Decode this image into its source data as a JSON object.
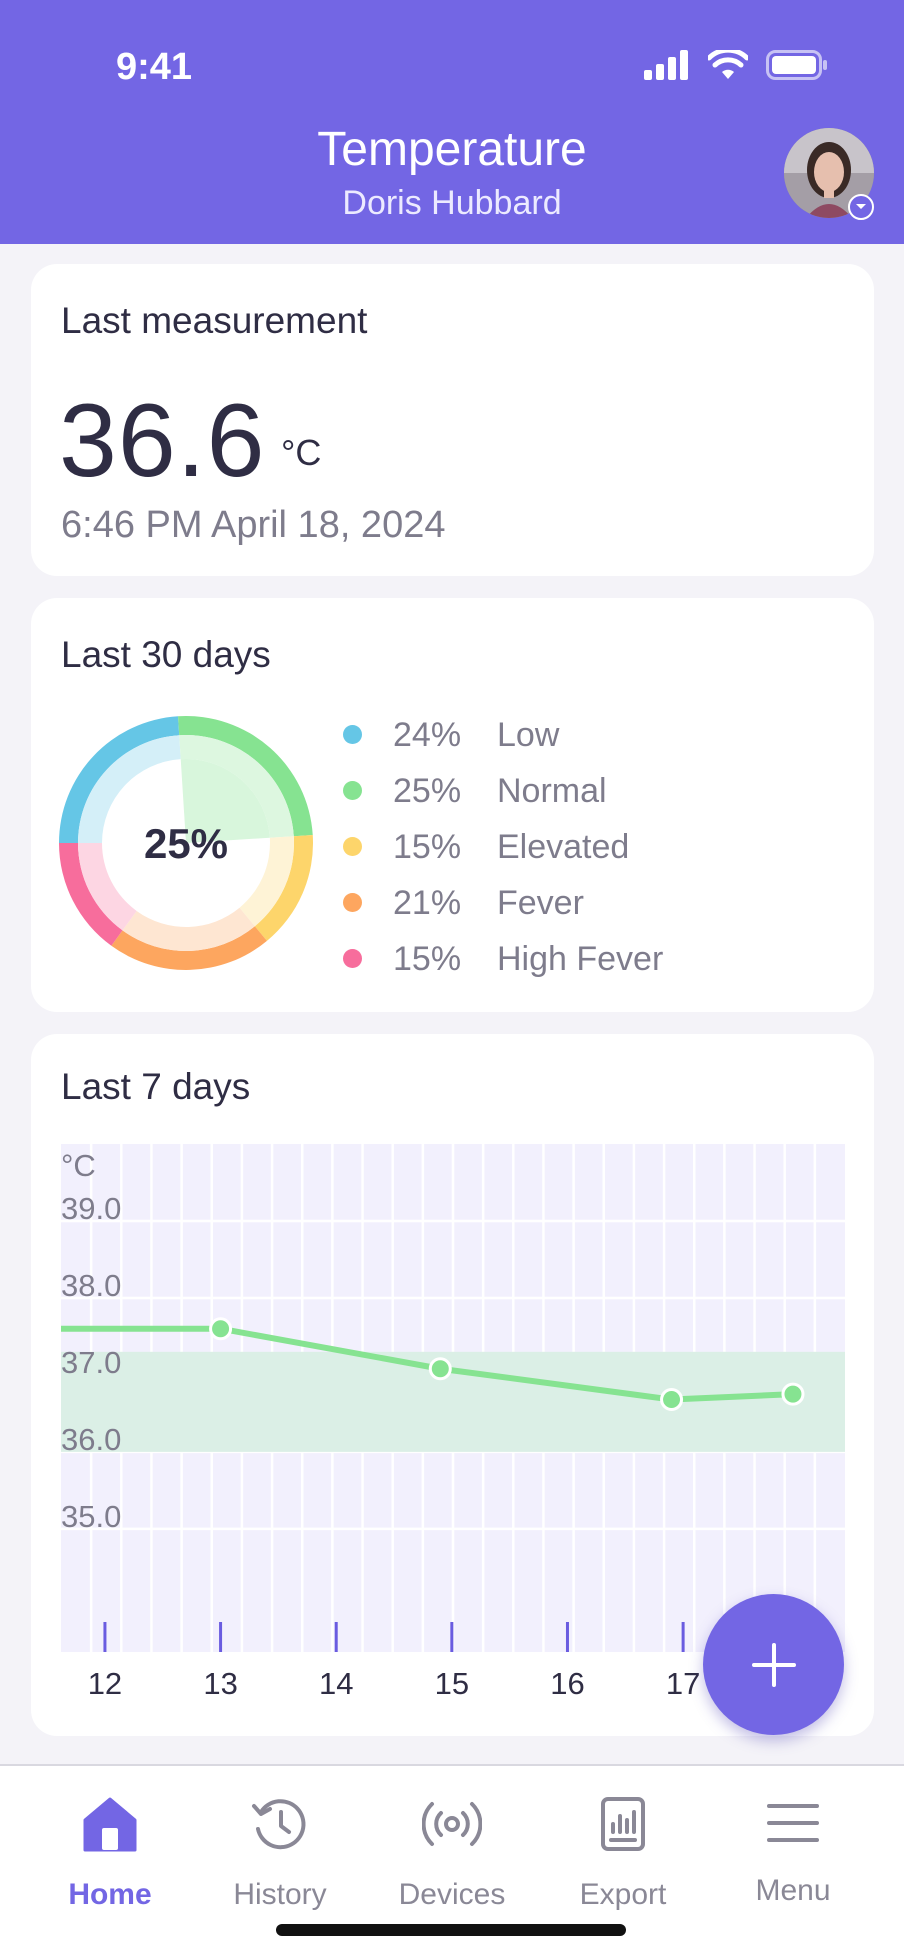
{
  "status_bar": {
    "time": "9:41"
  },
  "header": {
    "title": "Temperature",
    "subtitle": "Doris Hubbard"
  },
  "last_measurement": {
    "title": "Last measurement",
    "value": "36.6",
    "unit": "°C",
    "timestamp": "6:46 PM April 18, 2024"
  },
  "last_30_days": {
    "title": "Last 30 days",
    "center_label": "25%",
    "highlighted": "Normal",
    "segments": [
      {
        "percent": "24%",
        "label": "Low",
        "value": 24,
        "color": "#65c6e6"
      },
      {
        "percent": "25%",
        "label": "Normal",
        "value": 25,
        "color": "#86e391"
      },
      {
        "percent": "15%",
        "label": "Elevated",
        "value": 15,
        "color": "#fdd56b"
      },
      {
        "percent": "21%",
        "label": "Fever",
        "value": 21,
        "color": "#fda65f"
      },
      {
        "percent": "15%",
        "label": "High Fever",
        "value": 15,
        "color": "#f76d9c"
      }
    ]
  },
  "last_7_days": {
    "title": "Last 7 days",
    "unit_label": "°C",
    "chart_data": {
      "type": "line",
      "x_ticks": [
        "12",
        "13",
        "14",
        "15",
        "16",
        "17"
      ],
      "y_ticks": [
        "39.0",
        "38.0",
        "37.0",
        "36.0",
        "35.0"
      ],
      "xlim": [
        11.62,
        18.4
      ],
      "ylim": [
        33.4,
        40.0
      ],
      "normal_band": [
        36.0,
        37.3
      ],
      "series": [
        {
          "points": [
            [
              11.62,
              37.6
            ],
            [
              13.0,
              37.6
            ],
            [
              14.9,
              37.08
            ],
            [
              16.9,
              36.68
            ],
            [
              17.95,
              36.75
            ]
          ]
        }
      ],
      "marker_x": [
        13.0,
        14.9,
        16.9,
        17.95
      ],
      "color": "#86e391",
      "band_color": "#dbefe6",
      "background": "#f2f0fd",
      "tick_color": "#6a5ce0"
    }
  },
  "fab": {
    "icon": "plus-icon"
  },
  "tabbar": {
    "items": [
      {
        "label": "Home",
        "icon": "home-icon",
        "active": true
      },
      {
        "label": "History",
        "icon": "history-icon",
        "active": false
      },
      {
        "label": "Devices",
        "icon": "devices-icon",
        "active": false
      },
      {
        "label": "Export",
        "icon": "export-icon",
        "active": false
      },
      {
        "label": "Menu",
        "icon": "menu-icon",
        "active": false
      }
    ]
  },
  "colors": {
    "accent": "#7366e4",
    "text_primary": "#2f2d44",
    "text_secondary": "#7e7c8c"
  }
}
